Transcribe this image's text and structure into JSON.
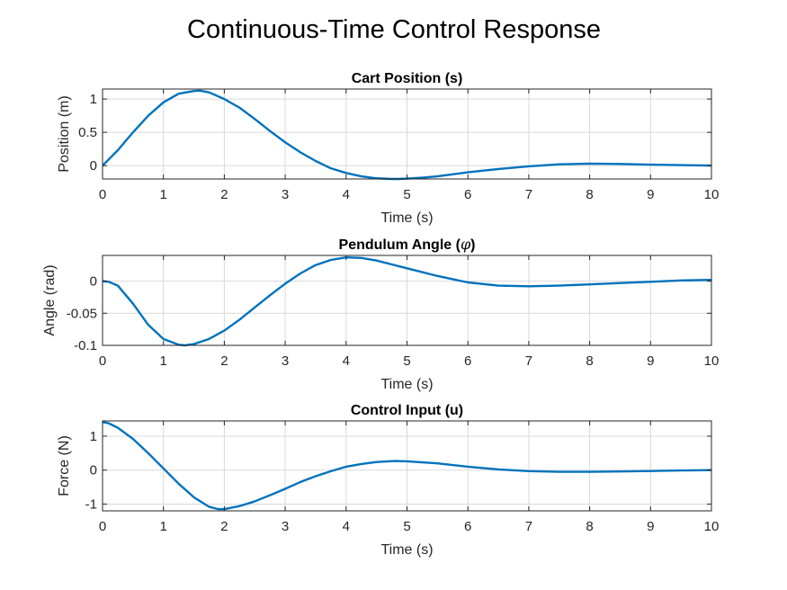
{
  "figure": {
    "title": "Continuous-Time Control Response",
    "line_color": "#0072BD"
  },
  "chart_data": [
    {
      "type": "line",
      "title": "Cart Position (s)",
      "xlabel": "Time (s)",
      "ylabel": "Position (m)",
      "xlim": [
        0,
        10
      ],
      "ylim": [
        -0.2,
        1.15
      ],
      "xticks": [
        "0",
        "1",
        "2",
        "3",
        "4",
        "5",
        "6",
        "7",
        "8",
        "9",
        "10"
      ],
      "yticks": [
        {
          "value": 0,
          "label": "0"
        },
        {
          "value": 0.5,
          "label": "0.5"
        },
        {
          "value": 1,
          "label": "1"
        }
      ],
      "grid": true,
      "series": [
        {
          "x": [
            0,
            0.25,
            0.5,
            0.75,
            1,
            1.25,
            1.5,
            1.6,
            1.75,
            2,
            2.25,
            2.5,
            2.75,
            3,
            3.25,
            3.5,
            3.75,
            4,
            4.25,
            4.5,
            4.75,
            4.85,
            5,
            5.25,
            5.5,
            5.75,
            6,
            6.5,
            7,
            7.5,
            8,
            8.5,
            9,
            9.5,
            10
          ],
          "y": [
            0,
            0.23,
            0.5,
            0.75,
            0.95,
            1.08,
            1.12,
            1.125,
            1.1,
            1.0,
            0.87,
            0.7,
            0.52,
            0.35,
            0.2,
            0.07,
            -0.04,
            -0.11,
            -0.16,
            -0.19,
            -0.2,
            -0.2,
            -0.195,
            -0.18,
            -0.16,
            -0.13,
            -0.1,
            -0.05,
            -0.01,
            0.02,
            0.03,
            0.025,
            0.015,
            0.008,
            0.002
          ]
        }
      ]
    },
    {
      "type": "line",
      "title_text": "Pendulum Angle (",
      "title_symbol": "φ",
      "title_end": ")",
      "xlabel": "Time (s)",
      "ylabel": "Angle (rad)",
      "xlim": [
        0,
        10
      ],
      "ylim": [
        -0.1,
        0.04
      ],
      "xticks": [
        "0",
        "1",
        "2",
        "3",
        "4",
        "5",
        "6",
        "7",
        "8",
        "9",
        "10"
      ],
      "yticks": [
        {
          "value": 0,
          "label": "0"
        },
        {
          "value": -0.05,
          "label": "-0.05"
        },
        {
          "value": -0.1,
          "label": "-0.1"
        }
      ],
      "grid": true,
      "series": [
        {
          "x": [
            0,
            0.1,
            0.25,
            0.5,
            0.75,
            1,
            1.25,
            1.35,
            1.5,
            1.75,
            2,
            2.25,
            2.5,
            2.75,
            3,
            3.25,
            3.5,
            3.75,
            4,
            4.25,
            4.5,
            4.75,
            5,
            5.5,
            6,
            6.5,
            7,
            7.5,
            8,
            8.5,
            9,
            9.5,
            10
          ],
          "y": [
            0,
            -0.001,
            -0.007,
            -0.035,
            -0.068,
            -0.09,
            -0.099,
            -0.1,
            -0.098,
            -0.09,
            -0.077,
            -0.06,
            -0.041,
            -0.022,
            -0.004,
            0.012,
            0.025,
            0.033,
            0.037,
            0.036,
            0.032,
            0.026,
            0.02,
            0.008,
            -0.002,
            -0.007,
            -0.008,
            -0.007,
            -0.005,
            -0.003,
            -0.001,
            0.001,
            0.002
          ]
        }
      ]
    },
    {
      "type": "line",
      "title": "Control Input (u)",
      "xlabel": "Time (s)",
      "ylabel": "Force (N)",
      "xlim": [
        0,
        10
      ],
      "ylim": [
        -1.2,
        1.45
      ],
      "xticks": [
        "0",
        "1",
        "2",
        "3",
        "4",
        "5",
        "6",
        "7",
        "8",
        "9",
        "10"
      ],
      "yticks": [
        {
          "value": 1,
          "label": "1"
        },
        {
          "value": 0,
          "label": "0"
        },
        {
          "value": -1,
          "label": "-1"
        }
      ],
      "grid": true,
      "series": [
        {
          "x": [
            0,
            0.1,
            0.25,
            0.5,
            0.75,
            1,
            1.25,
            1.5,
            1.75,
            1.9,
            2,
            2.25,
            2.5,
            2.75,
            3,
            3.25,
            3.5,
            3.75,
            4,
            4.25,
            4.5,
            4.8,
            5,
            5.5,
            6,
            6.5,
            7,
            7.5,
            8,
            8.5,
            9,
            9.5,
            10
          ],
          "y": [
            1.42,
            1.38,
            1.25,
            0.92,
            0.5,
            0.05,
            -0.4,
            -0.8,
            -1.08,
            -1.15,
            -1.15,
            -1.06,
            -0.92,
            -0.74,
            -0.55,
            -0.35,
            -0.18,
            -0.03,
            0.1,
            0.18,
            0.24,
            0.27,
            0.26,
            0.2,
            0.1,
            0.02,
            -0.03,
            -0.05,
            -0.05,
            -0.04,
            -0.025,
            -0.01,
            0.0
          ]
        }
      ]
    }
  ]
}
